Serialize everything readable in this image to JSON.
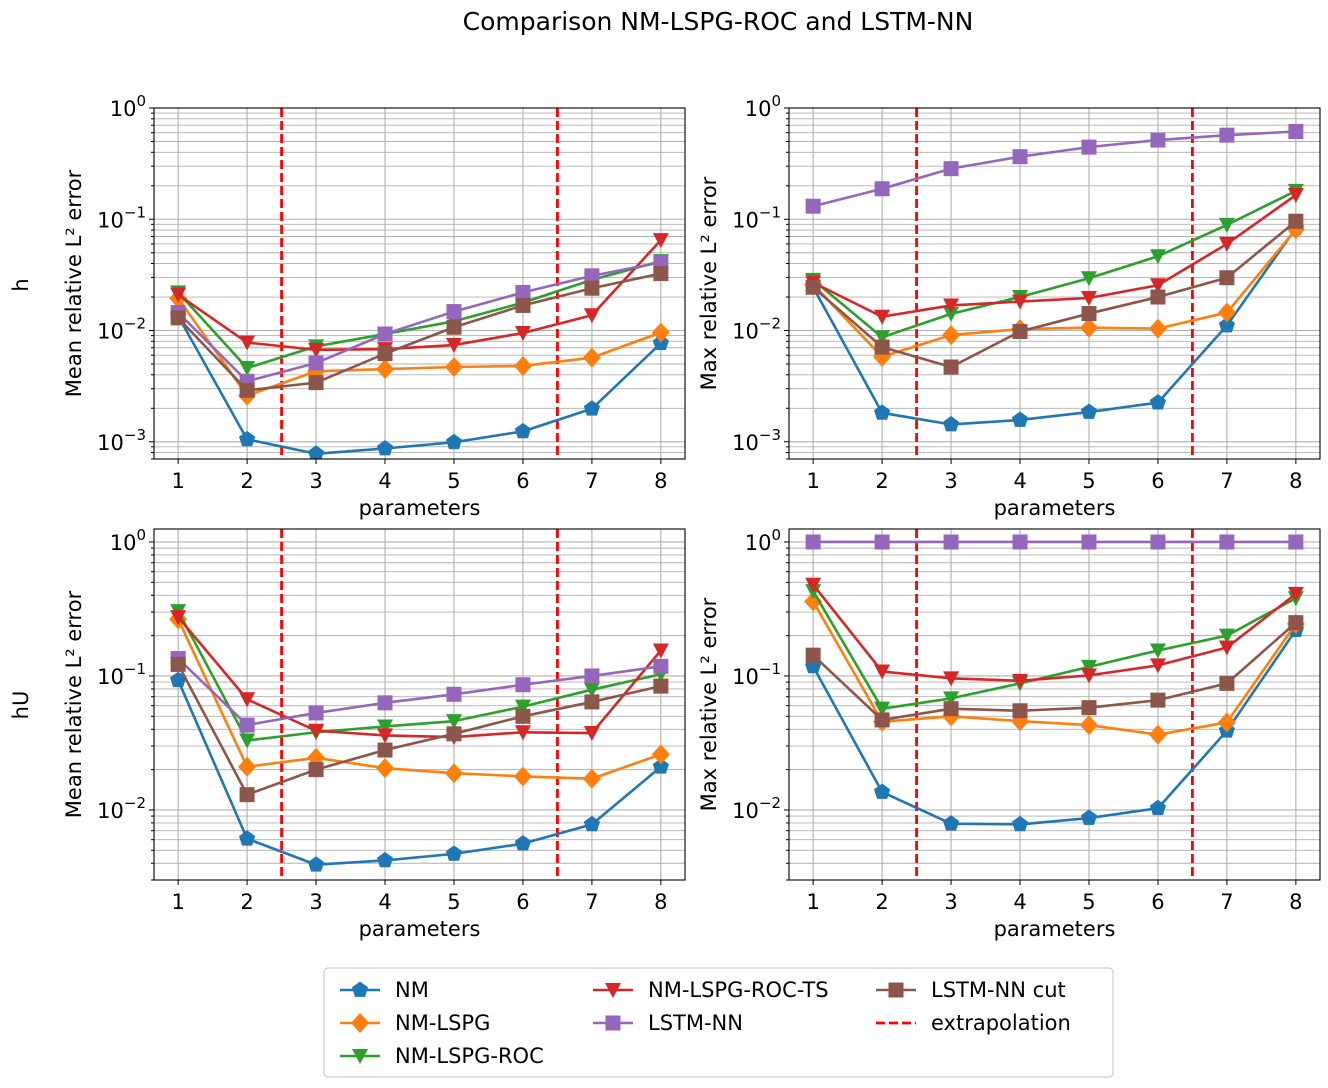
{
  "title": "Comparison NM-LSPG-ROC and LSTM-NN",
  "row_labels": [
    "h",
    "hU"
  ],
  "legend": [
    {
      "name": "NM",
      "color": "#1f77b4",
      "marker": "pentagon"
    },
    {
      "name": "NM-LSPG",
      "color": "#ff7f0e",
      "marker": "diamond"
    },
    {
      "name": "NM-LSPG-ROC",
      "color": "#2ca02c",
      "marker": "triangle-down"
    },
    {
      "name": "NM-LSPG-ROC-TS",
      "color": "#d62728",
      "marker": "triangle-down"
    },
    {
      "name": "LSTM-NN",
      "color": "#9467bd",
      "marker": "square"
    },
    {
      "name": "LSTM-NN cut",
      "color": "#8c564b",
      "marker": "square"
    },
    {
      "name": "extrapolation",
      "color": "#ff0000",
      "marker": "dashed-line"
    }
  ],
  "chart_data": [
    {
      "type": "line",
      "row": "h",
      "title": "",
      "xlabel": "parameters",
      "ylabel": "Mean relative L² error",
      "yscale": "log",
      "ylim": [
        0.0007,
        1.0
      ],
      "xlim": [
        0.65,
        8.35
      ],
      "x": [
        1,
        2,
        3,
        4,
        5,
        6,
        7,
        8
      ],
      "x_tick_labels": [
        "1",
        "2",
        "3",
        "4",
        "5",
        "6",
        "7",
        "8"
      ],
      "y_tick_labels": [
        {
          "base": "10",
          "exp": "0",
          "value": 1
        },
        {
          "base": "10",
          "exp": "−1",
          "value": 0.1
        },
        {
          "base": "10",
          "exp": "−2",
          "value": 0.01
        },
        {
          "base": "10",
          "exp": "−3",
          "value": 0.001
        }
      ],
      "extrapolation_lines": [
        2.5,
        6.5
      ],
      "grid": true,
      "series": [
        {
          "name": "NM",
          "values": [
            0.0135,
            0.00105,
            0.00078,
            0.00087,
            0.00099,
            0.00124,
            0.00198,
            0.0077
          ]
        },
        {
          "name": "NM-LSPG",
          "values": [
            0.0195,
            0.0026,
            0.0043,
            0.0045,
            0.0047,
            0.0048,
            0.0057,
            0.0096
          ]
        },
        {
          "name": "NM-LSPG-ROC",
          "values": [
            0.022,
            0.0046,
            0.0072,
            0.0093,
            0.0121,
            0.0178,
            0.0285,
            0.042
          ]
        },
        {
          "name": "NM-LSPG-ROC-TS",
          "values": [
            0.021,
            0.0078,
            0.0067,
            0.0068,
            0.0074,
            0.0095,
            0.0137,
            0.065
          ]
        },
        {
          "name": "LSTM-NN",
          "values": [
            0.0145,
            0.0035,
            0.0051,
            0.0093,
            0.0148,
            0.022,
            0.031,
            0.041
          ]
        },
        {
          "name": "LSTM-NN cut",
          "values": [
            0.013,
            0.0029,
            0.0034,
            0.0062,
            0.0107,
            0.0168,
            0.024,
            0.0325
          ]
        }
      ]
    },
    {
      "type": "line",
      "row": "h",
      "title": "",
      "xlabel": "parameters",
      "ylabel": "Max relative L² error",
      "yscale": "log",
      "ylim": [
        0.0007,
        1.0
      ],
      "xlim": [
        0.65,
        8.35
      ],
      "x": [
        1,
        2,
        3,
        4,
        5,
        6,
        7,
        8
      ],
      "x_tick_labels": [
        "1",
        "2",
        "3",
        "4",
        "5",
        "6",
        "7",
        "8"
      ],
      "y_tick_labels": [
        {
          "base": "10",
          "exp": "0",
          "value": 1
        },
        {
          "base": "10",
          "exp": "−1",
          "value": 0.1
        },
        {
          "base": "10",
          "exp": "−2",
          "value": 0.01
        },
        {
          "base": "10",
          "exp": "−3",
          "value": 0.001
        }
      ],
      "extrapolation_lines": [
        2.5,
        6.5
      ],
      "grid": true,
      "series": [
        {
          "name": "NM",
          "values": [
            0.0245,
            0.00182,
            0.00143,
            0.00157,
            0.00185,
            0.00225,
            0.0111,
            0.083
          ]
        },
        {
          "name": "NM-LSPG",
          "values": [
            0.026,
            0.0058,
            0.0091,
            0.0103,
            0.0106,
            0.0104,
            0.0145,
            0.081
          ]
        },
        {
          "name": "NM-LSPG-ROC",
          "values": [
            0.0285,
            0.0087,
            0.0141,
            0.02,
            0.0295,
            0.0465,
            0.089,
            0.18
          ]
        },
        {
          "name": "NM-LSPG-ROC-TS",
          "values": [
            0.027,
            0.0133,
            0.0168,
            0.0182,
            0.0196,
            0.0255,
            0.06,
            0.165
          ]
        },
        {
          "name": "LSTM-NN",
          "values": [
            0.131,
            0.188,
            0.285,
            0.365,
            0.445,
            0.515,
            0.57,
            0.615
          ]
        },
        {
          "name": "LSTM-NN cut",
          "values": [
            0.0245,
            0.0071,
            0.0047,
            0.0098,
            0.0142,
            0.02,
            0.0298,
            0.096
          ]
        }
      ]
    },
    {
      "type": "line",
      "row": "hU",
      "title": "",
      "xlabel": "parameters",
      "ylabel": "Mean relative L² error",
      "yscale": "log",
      "ylim": [
        0.003,
        1.25
      ],
      "xlim": [
        0.65,
        8.35
      ],
      "x": [
        1,
        2,
        3,
        4,
        5,
        6,
        7,
        8
      ],
      "x_tick_labels": [
        "1",
        "2",
        "3",
        "4",
        "5",
        "6",
        "7",
        "8"
      ],
      "y_tick_labels": [
        {
          "base": "10",
          "exp": "0",
          "value": 1
        },
        {
          "base": "10",
          "exp": "−1",
          "value": 0.1
        },
        {
          "base": "10",
          "exp": "−2",
          "value": 0.01
        }
      ],
      "extrapolation_lines": [
        2.5,
        6.5
      ],
      "grid": true,
      "series": [
        {
          "name": "NM",
          "values": [
            0.093,
            0.0061,
            0.0039,
            0.0042,
            0.0047,
            0.0056,
            0.0078,
            0.021
          ]
        },
        {
          "name": "NM-LSPG",
          "values": [
            0.265,
            0.021,
            0.0245,
            0.0205,
            0.0188,
            0.0178,
            0.0171,
            0.026
          ]
        },
        {
          "name": "NM-LSPG-ROC",
          "values": [
            0.305,
            0.033,
            0.038,
            0.042,
            0.046,
            0.059,
            0.079,
            0.103
          ]
        },
        {
          "name": "NM-LSPG-ROC-TS",
          "values": [
            0.275,
            0.067,
            0.039,
            0.036,
            0.035,
            0.038,
            0.0375,
            0.155
          ]
        },
        {
          "name": "LSTM-NN",
          "values": [
            0.135,
            0.043,
            0.053,
            0.063,
            0.073,
            0.086,
            0.1,
            0.118
          ]
        },
        {
          "name": "LSTM-NN cut",
          "values": [
            0.122,
            0.013,
            0.02,
            0.028,
            0.037,
            0.05,
            0.064,
            0.084
          ]
        }
      ]
    },
    {
      "type": "line",
      "row": "hU",
      "title": "",
      "xlabel": "parameters",
      "ylabel": "Max relative L² error",
      "yscale": "log",
      "ylim": [
        0.003,
        1.25
      ],
      "xlim": [
        0.65,
        8.35
      ],
      "x": [
        1,
        2,
        3,
        4,
        5,
        6,
        7,
        8
      ],
      "x_tick_labels": [
        "1",
        "2",
        "3",
        "4",
        "5",
        "6",
        "7",
        "8"
      ],
      "y_tick_labels": [
        {
          "base": "10",
          "exp": "0",
          "value": 1
        },
        {
          "base": "10",
          "exp": "−1",
          "value": 0.1
        },
        {
          "base": "10",
          "exp": "−2",
          "value": 0.01
        }
      ],
      "extrapolation_lines": [
        2.5,
        6.5
      ],
      "grid": true,
      "series": [
        {
          "name": "NM",
          "values": [
            0.118,
            0.0136,
            0.0079,
            0.0078,
            0.0087,
            0.0103,
            0.039,
            0.22
          ]
        },
        {
          "name": "NM-LSPG",
          "values": [
            0.36,
            0.0455,
            0.05,
            0.046,
            0.043,
            0.0365,
            0.045,
            0.245
          ]
        },
        {
          "name": "NM-LSPG-ROC",
          "values": [
            0.43,
            0.057,
            0.068,
            0.088,
            0.117,
            0.155,
            0.2,
            0.38
          ]
        },
        {
          "name": "NM-LSPG-ROC-TS",
          "values": [
            0.48,
            0.108,
            0.096,
            0.092,
            0.101,
            0.12,
            0.163,
            0.41
          ]
        },
        {
          "name": "LSTM-NN",
          "values": [
            1.0,
            1.0,
            1.0,
            1.0,
            1.0,
            1.0,
            1.0,
            1.0
          ]
        },
        {
          "name": "LSTM-NN cut",
          "values": [
            0.143,
            0.047,
            0.057,
            0.055,
            0.058,
            0.066,
            0.088,
            0.25
          ]
        }
      ]
    }
  ]
}
